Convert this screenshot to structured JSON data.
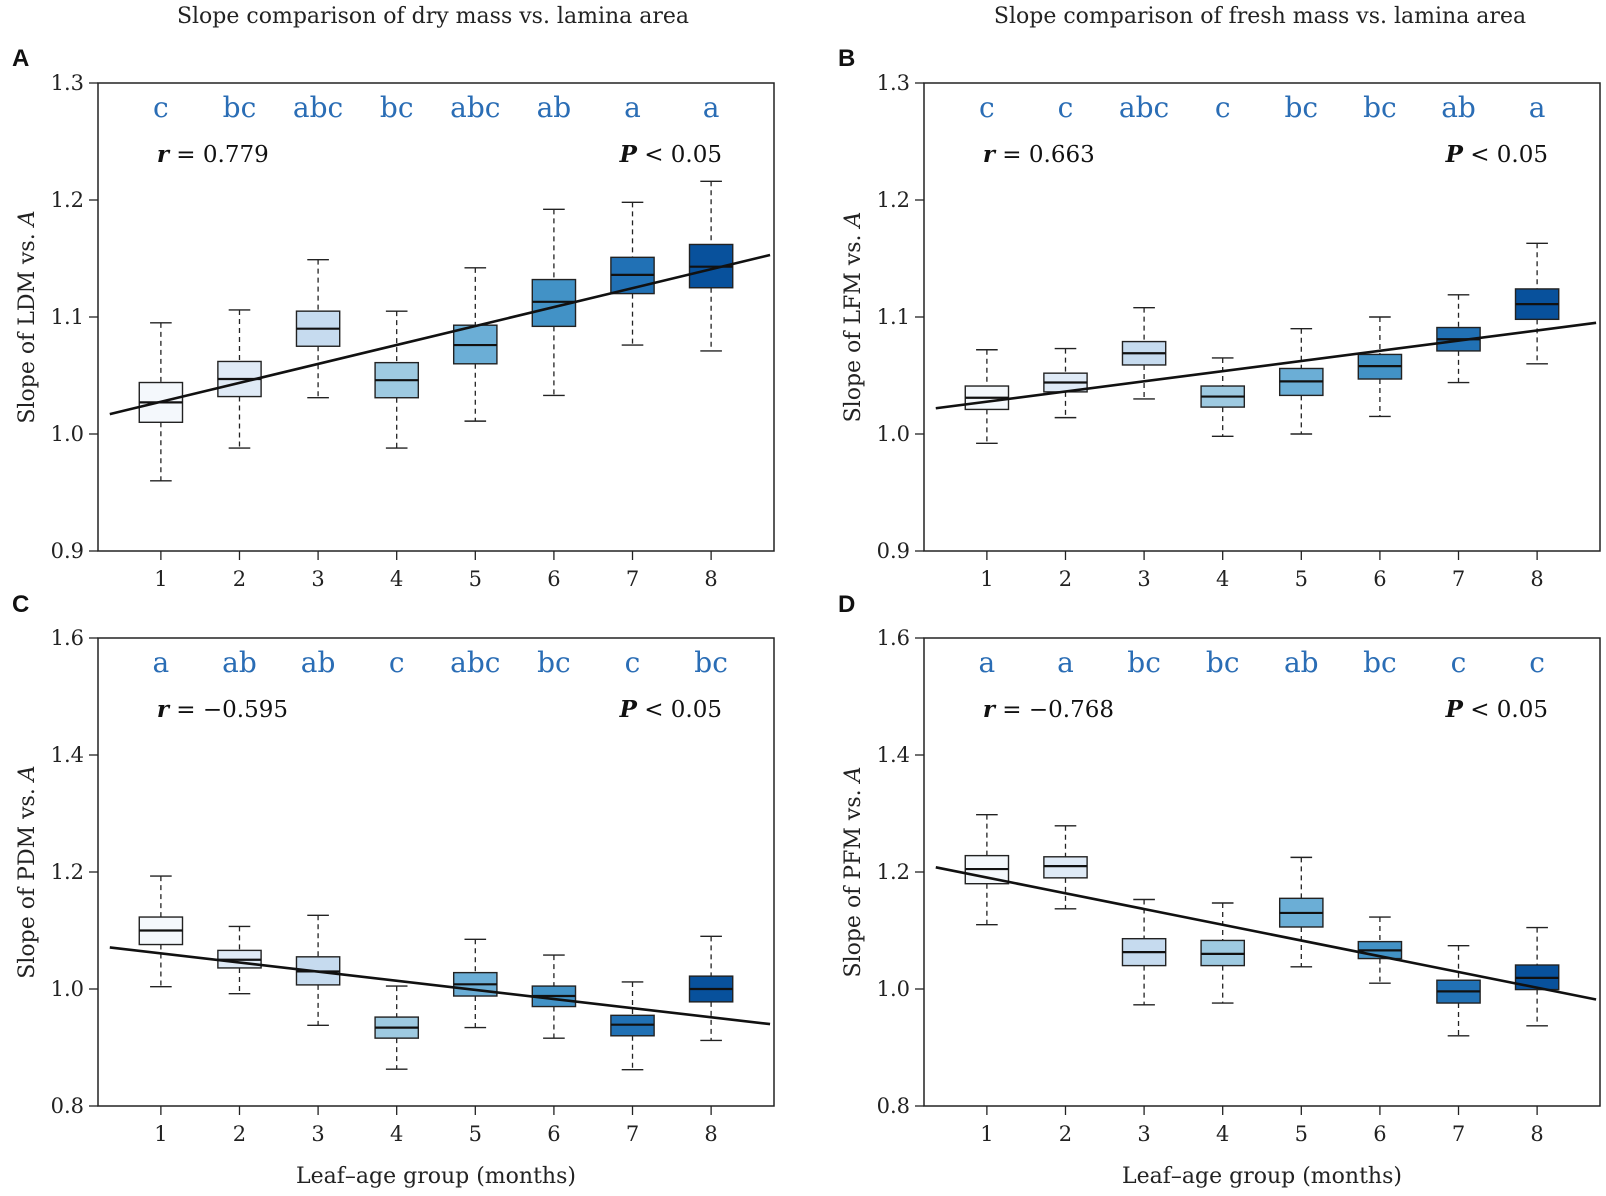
{
  "column_titles": [
    "Slope comparison of dry mass vs. lamina area",
    "Slope comparison of fresh mass vs. lamina area"
  ],
  "x_axis_label": "Leaf–age group (months)",
  "colors": {
    "boxes": [
      "#f4f8fc",
      "#dfeaf6",
      "#c6dbef",
      "#9ecae1",
      "#6baed6",
      "#4292c6",
      "#2171b5",
      "#08519c"
    ],
    "significance_letters": "#2a6db5",
    "lines": "#111111"
  },
  "chart_data": [
    {
      "panel": "A",
      "type": "boxplot",
      "ylabel_prefix": "Slope of LDM vs. ",
      "ylabel_var": "A",
      "ylim": [
        0.9,
        1.3
      ],
      "yticks": [
        "0.9",
        "1.0",
        "1.1",
        "1.2",
        "1.3"
      ],
      "categories": [
        "1",
        "2",
        "3",
        "4",
        "5",
        "6",
        "7",
        "8"
      ],
      "letters": [
        "c",
        "bc",
        "abc",
        "bc",
        "abc",
        "ab",
        "a",
        "a"
      ],
      "r_label": "r",
      "r_value": " = 0.779",
      "p_label": "P",
      "p_value": " < 0.05",
      "boxes": [
        {
          "min": 0.96,
          "q1": 1.01,
          "median": 1.027,
          "q3": 1.044,
          "max": 1.095
        },
        {
          "min": 0.988,
          "q1": 1.032,
          "median": 1.047,
          "q3": 1.062,
          "max": 1.106
        },
        {
          "min": 1.031,
          "q1": 1.075,
          "median": 1.09,
          "q3": 1.105,
          "max": 1.149
        },
        {
          "min": 0.988,
          "q1": 1.031,
          "median": 1.046,
          "q3": 1.061,
          "max": 1.105
        },
        {
          "min": 1.011,
          "q1": 1.06,
          "median": 1.076,
          "q3": 1.093,
          "max": 1.142
        },
        {
          "min": 1.033,
          "q1": 1.092,
          "median": 1.113,
          "q3": 1.132,
          "max": 1.192
        },
        {
          "min": 1.076,
          "q1": 1.12,
          "median": 1.136,
          "q3": 1.151,
          "max": 1.198
        },
        {
          "min": 1.071,
          "q1": 1.125,
          "median": 1.143,
          "q3": 1.162,
          "max": 1.216
        }
      ],
      "regression": {
        "x_start": 0.35,
        "y_start": 1.017,
        "x_end": 8.75,
        "y_end": 1.153
      }
    },
    {
      "panel": "B",
      "type": "boxplot",
      "ylabel_prefix": "Slope of LFM vs. ",
      "ylabel_var": "A",
      "ylim": [
        0.9,
        1.3
      ],
      "yticks": [
        "0.9",
        "1.0",
        "1.1",
        "1.2",
        "1.3"
      ],
      "categories": [
        "1",
        "2",
        "3",
        "4",
        "5",
        "6",
        "7",
        "8"
      ],
      "letters": [
        "c",
        "c",
        "abc",
        "c",
        "bc",
        "bc",
        "ab",
        "a"
      ],
      "r_label": "r",
      "r_value": " = 0.663",
      "p_label": "P",
      "p_value": " < 0.05",
      "boxes": [
        {
          "min": 0.992,
          "q1": 1.021,
          "median": 1.031,
          "q3": 1.041,
          "max": 1.072
        },
        {
          "min": 1.014,
          "q1": 1.036,
          "median": 1.044,
          "q3": 1.052,
          "max": 1.073
        },
        {
          "min": 1.03,
          "q1": 1.059,
          "median": 1.069,
          "q3": 1.079,
          "max": 1.108
        },
        {
          "min": 0.998,
          "q1": 1.023,
          "median": 1.032,
          "q3": 1.041,
          "max": 1.065
        },
        {
          "min": 1.0,
          "q1": 1.033,
          "median": 1.045,
          "q3": 1.056,
          "max": 1.09
        },
        {
          "min": 1.015,
          "q1": 1.047,
          "median": 1.058,
          "q3": 1.068,
          "max": 1.1
        },
        {
          "min": 1.044,
          "q1": 1.071,
          "median": 1.081,
          "q3": 1.091,
          "max": 1.119
        },
        {
          "min": 1.06,
          "q1": 1.098,
          "median": 1.111,
          "q3": 1.124,
          "max": 1.163
        }
      ],
      "regression": {
        "x_start": 0.35,
        "y_start": 1.022,
        "x_end": 8.75,
        "y_end": 1.095
      }
    },
    {
      "panel": "C",
      "type": "boxplot",
      "ylabel_prefix": "Slope of PDM vs. ",
      "ylabel_var": "A",
      "ylim": [
        0.8,
        1.6
      ],
      "yticks": [
        "0.8",
        "1.0",
        "1.2",
        "1.4",
        "1.6"
      ],
      "categories": [
        "1",
        "2",
        "3",
        "4",
        "5",
        "6",
        "7",
        "8"
      ],
      "letters": [
        "a",
        "ab",
        "ab",
        "c",
        "abc",
        "bc",
        "c",
        "bc"
      ],
      "r_label": "r",
      "r_value": " = −0.595",
      "p_label": "P",
      "p_value": " < 0.05",
      "boxes": [
        {
          "min": 1.004,
          "q1": 1.076,
          "median": 1.1,
          "q3": 1.123,
          "max": 1.193
        },
        {
          "min": 0.992,
          "q1": 1.036,
          "median": 1.05,
          "q3": 1.066,
          "max": 1.107
        },
        {
          "min": 0.938,
          "q1": 1.007,
          "median": 1.03,
          "q3": 1.055,
          "max": 1.126
        },
        {
          "min": 0.863,
          "q1": 0.916,
          "median": 0.934,
          "q3": 0.952,
          "max": 1.005
        },
        {
          "min": 0.934,
          "q1": 0.988,
          "median": 1.008,
          "q3": 1.028,
          "max": 1.085
        },
        {
          "min": 0.916,
          "q1": 0.97,
          "median": 0.988,
          "q3": 1.005,
          "max": 1.058
        },
        {
          "min": 0.862,
          "q1": 0.92,
          "median": 0.939,
          "q3": 0.955,
          "max": 1.012
        },
        {
          "min": 0.912,
          "q1": 0.978,
          "median": 1.0,
          "q3": 1.022,
          "max": 1.09
        }
      ],
      "regression": {
        "x_start": 0.35,
        "y_start": 1.071,
        "x_end": 8.75,
        "y_end": 0.94
      }
    },
    {
      "panel": "D",
      "type": "boxplot",
      "ylabel_prefix": "Slope of PFM vs. ",
      "ylabel_var": "A",
      "ylim": [
        0.8,
        1.6
      ],
      "yticks": [
        "0.8",
        "1.0",
        "1.2",
        "1.4",
        "1.6"
      ],
      "categories": [
        "1",
        "2",
        "3",
        "4",
        "5",
        "6",
        "7",
        "8"
      ],
      "letters": [
        "a",
        "a",
        "bc",
        "bc",
        "ab",
        "bc",
        "c",
        "c"
      ],
      "r_label": "r",
      "r_value": " = −0.768",
      "p_label": "P",
      "p_value": " < 0.05",
      "boxes": [
        {
          "min": 1.11,
          "q1": 1.18,
          "median": 1.205,
          "q3": 1.228,
          "max": 1.298
        },
        {
          "min": 1.137,
          "q1": 1.19,
          "median": 1.21,
          "q3": 1.226,
          "max": 1.279
        },
        {
          "min": 0.973,
          "q1": 1.04,
          "median": 1.063,
          "q3": 1.086,
          "max": 1.153
        },
        {
          "min": 0.976,
          "q1": 1.04,
          "median": 1.06,
          "q3": 1.083,
          "max": 1.147
        },
        {
          "min": 1.038,
          "q1": 1.106,
          "median": 1.13,
          "q3": 1.155,
          "max": 1.225
        },
        {
          "min": 1.01,
          "q1": 1.052,
          "median": 1.066,
          "q3": 1.081,
          "max": 1.123
        },
        {
          "min": 0.92,
          "q1": 0.976,
          "median": 0.996,
          "q3": 1.015,
          "max": 1.074
        },
        {
          "min": 0.937,
          "q1": 0.999,
          "median": 1.019,
          "q3": 1.041,
          "max": 1.105
        }
      ],
      "regression": {
        "x_start": 0.35,
        "y_start": 1.208,
        "x_end": 8.75,
        "y_end": 0.982
      }
    }
  ]
}
